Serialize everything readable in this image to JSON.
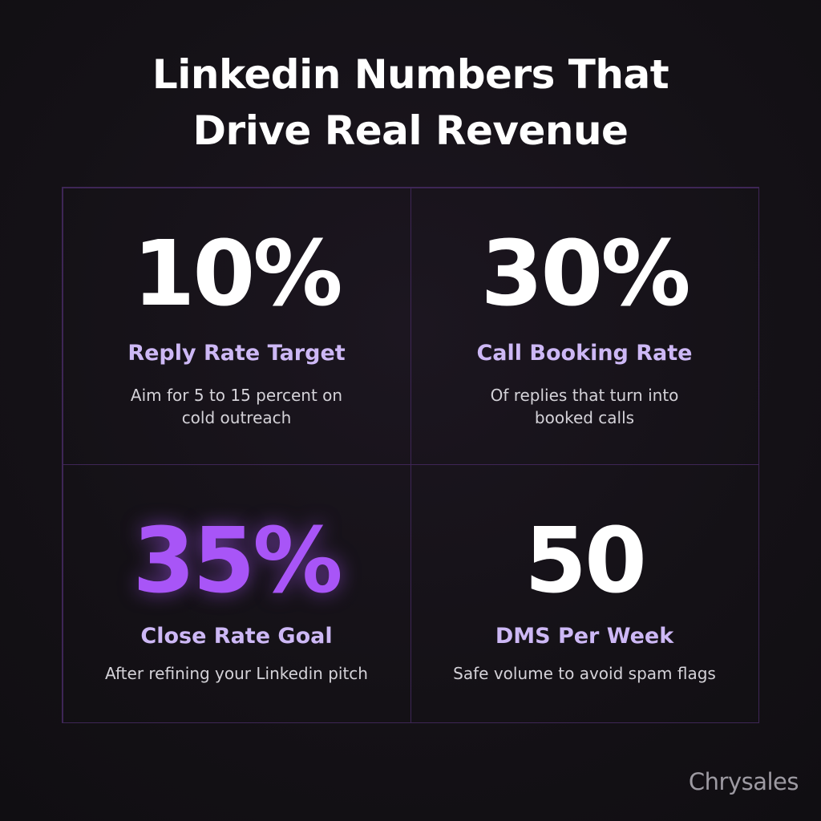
{
  "header": {
    "title_lines": [
      "Linkedin Numbers That",
      "Drive Real Revenue"
    ]
  },
  "cards": [
    {
      "stat": "10%",
      "label": "Reply Rate Target",
      "description_lines": [
        "Aim for 5 to 15 percent on",
        "cold outreach"
      ],
      "highlight": false
    },
    {
      "stat": "30%",
      "label": "Call Booking Rate",
      "description_lines": [
        "Of replies that turn into",
        "booked calls"
      ],
      "highlight": false
    },
    {
      "stat": "35%",
      "label": "Close Rate Goal",
      "description_lines": [
        "After refining your Linkedin pitch"
      ],
      "highlight": true
    },
    {
      "stat": "50",
      "label": "DMS Per Week",
      "description_lines": [
        "Safe volume to avoid spam flags"
      ],
      "highlight": false
    }
  ],
  "brand": "Chrysales"
}
